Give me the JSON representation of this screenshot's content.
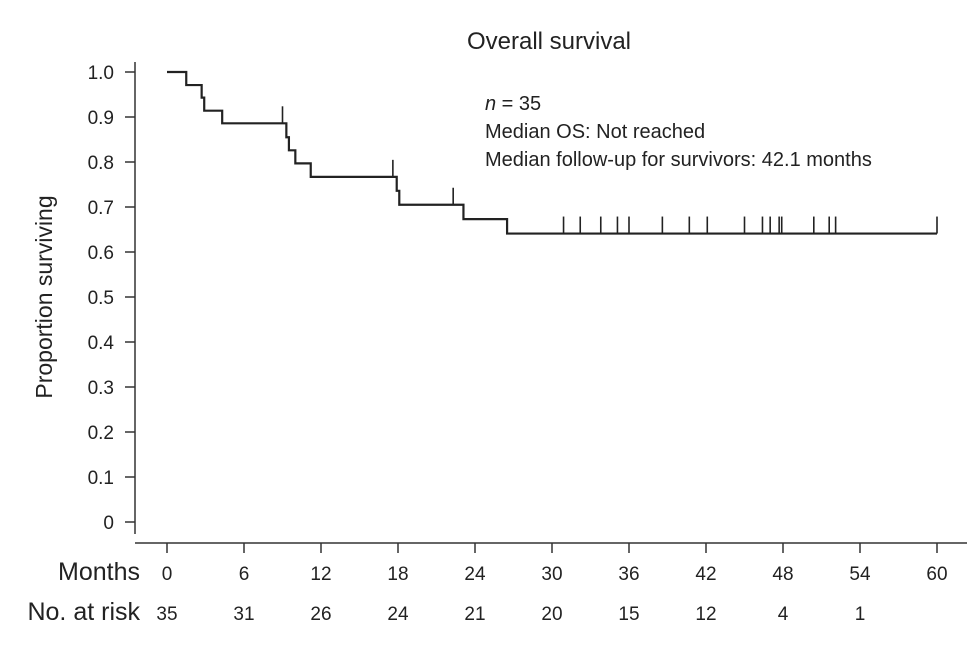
{
  "chart_data": {
    "type": "line",
    "subtype": "kaplan-meier",
    "title": "Overall survival",
    "ylabel": "Proportion surviving",
    "xlabel": "Months",
    "xlim": [
      0,
      60
    ],
    "ylim": [
      0,
      1.0
    ],
    "x_ticks": [
      0,
      6,
      12,
      18,
      24,
      30,
      36,
      42,
      48,
      54,
      60
    ],
    "y_ticks": [
      0,
      0.1,
      0.2,
      0.3,
      0.4,
      0.5,
      0.6,
      0.7,
      0.8,
      0.9,
      1.0
    ],
    "y_tick_labels": [
      "0",
      "0.1",
      "0.2",
      "0.3",
      "0.4",
      "0.5",
      "0.6",
      "0.7",
      "0.8",
      "0.9",
      "1.0"
    ],
    "x_tick_labels": [
      "0",
      "6",
      "12",
      "18",
      "24",
      "30",
      "36",
      "42",
      "48",
      "54",
      "60"
    ],
    "grid": false,
    "series": [
      {
        "color": "#222222",
        "steps": [
          {
            "x": 0,
            "y": 1.0
          },
          {
            "x": 1.5,
            "y": 0.971
          },
          {
            "x": 2.7,
            "y": 0.943
          },
          {
            "x": 2.9,
            "y": 0.914
          },
          {
            "x": 4.3,
            "y": 0.886
          },
          {
            "x": 9.3,
            "y": 0.855
          },
          {
            "x": 9.5,
            "y": 0.826
          },
          {
            "x": 10.0,
            "y": 0.797
          },
          {
            "x": 11.2,
            "y": 0.767
          },
          {
            "x": 17.9,
            "y": 0.736
          },
          {
            "x": 18.1,
            "y": 0.705
          },
          {
            "x": 23.1,
            "y": 0.673
          },
          {
            "x": 26.5,
            "y": 0.641
          }
        ],
        "x_end": 60,
        "censored": [
          {
            "x": 9.0,
            "y": 0.886
          },
          {
            "x": 17.6,
            "y": 0.767
          },
          {
            "x": 22.3,
            "y": 0.705
          },
          {
            "x": 30.9,
            "y": 0.641
          },
          {
            "x": 32.2,
            "y": 0.641
          },
          {
            "x": 33.8,
            "y": 0.641
          },
          {
            "x": 35.1,
            "y": 0.641
          },
          {
            "x": 36.0,
            "y": 0.641
          },
          {
            "x": 38.6,
            "y": 0.641
          },
          {
            "x": 40.7,
            "y": 0.641
          },
          {
            "x": 42.1,
            "y": 0.641
          },
          {
            "x": 45.0,
            "y": 0.641
          },
          {
            "x": 46.4,
            "y": 0.641
          },
          {
            "x": 47.0,
            "y": 0.641
          },
          {
            "x": 47.7,
            "y": 0.641
          },
          {
            "x": 47.9,
            "y": 0.641
          },
          {
            "x": 50.4,
            "y": 0.641
          },
          {
            "x": 51.6,
            "y": 0.641
          },
          {
            "x": 52.1,
            "y": 0.641
          },
          {
            "x": 60.0,
            "y": 0.641
          }
        ]
      }
    ],
    "annotations": {
      "n_label": "n",
      "n_value": " = 35",
      "median_os": "Median OS: Not reached",
      "median_followup": "Median follow-up for survivors: 42.1 months"
    },
    "risk_table": {
      "months_label": "Months",
      "label": "No. at risk",
      "times": [
        0,
        6,
        12,
        18,
        24,
        30,
        36,
        42,
        48,
        54
      ],
      "counts": [
        "35",
        "31",
        "26",
        "24",
        "21",
        "20",
        "15",
        "12",
        "4",
        "1"
      ]
    }
  }
}
